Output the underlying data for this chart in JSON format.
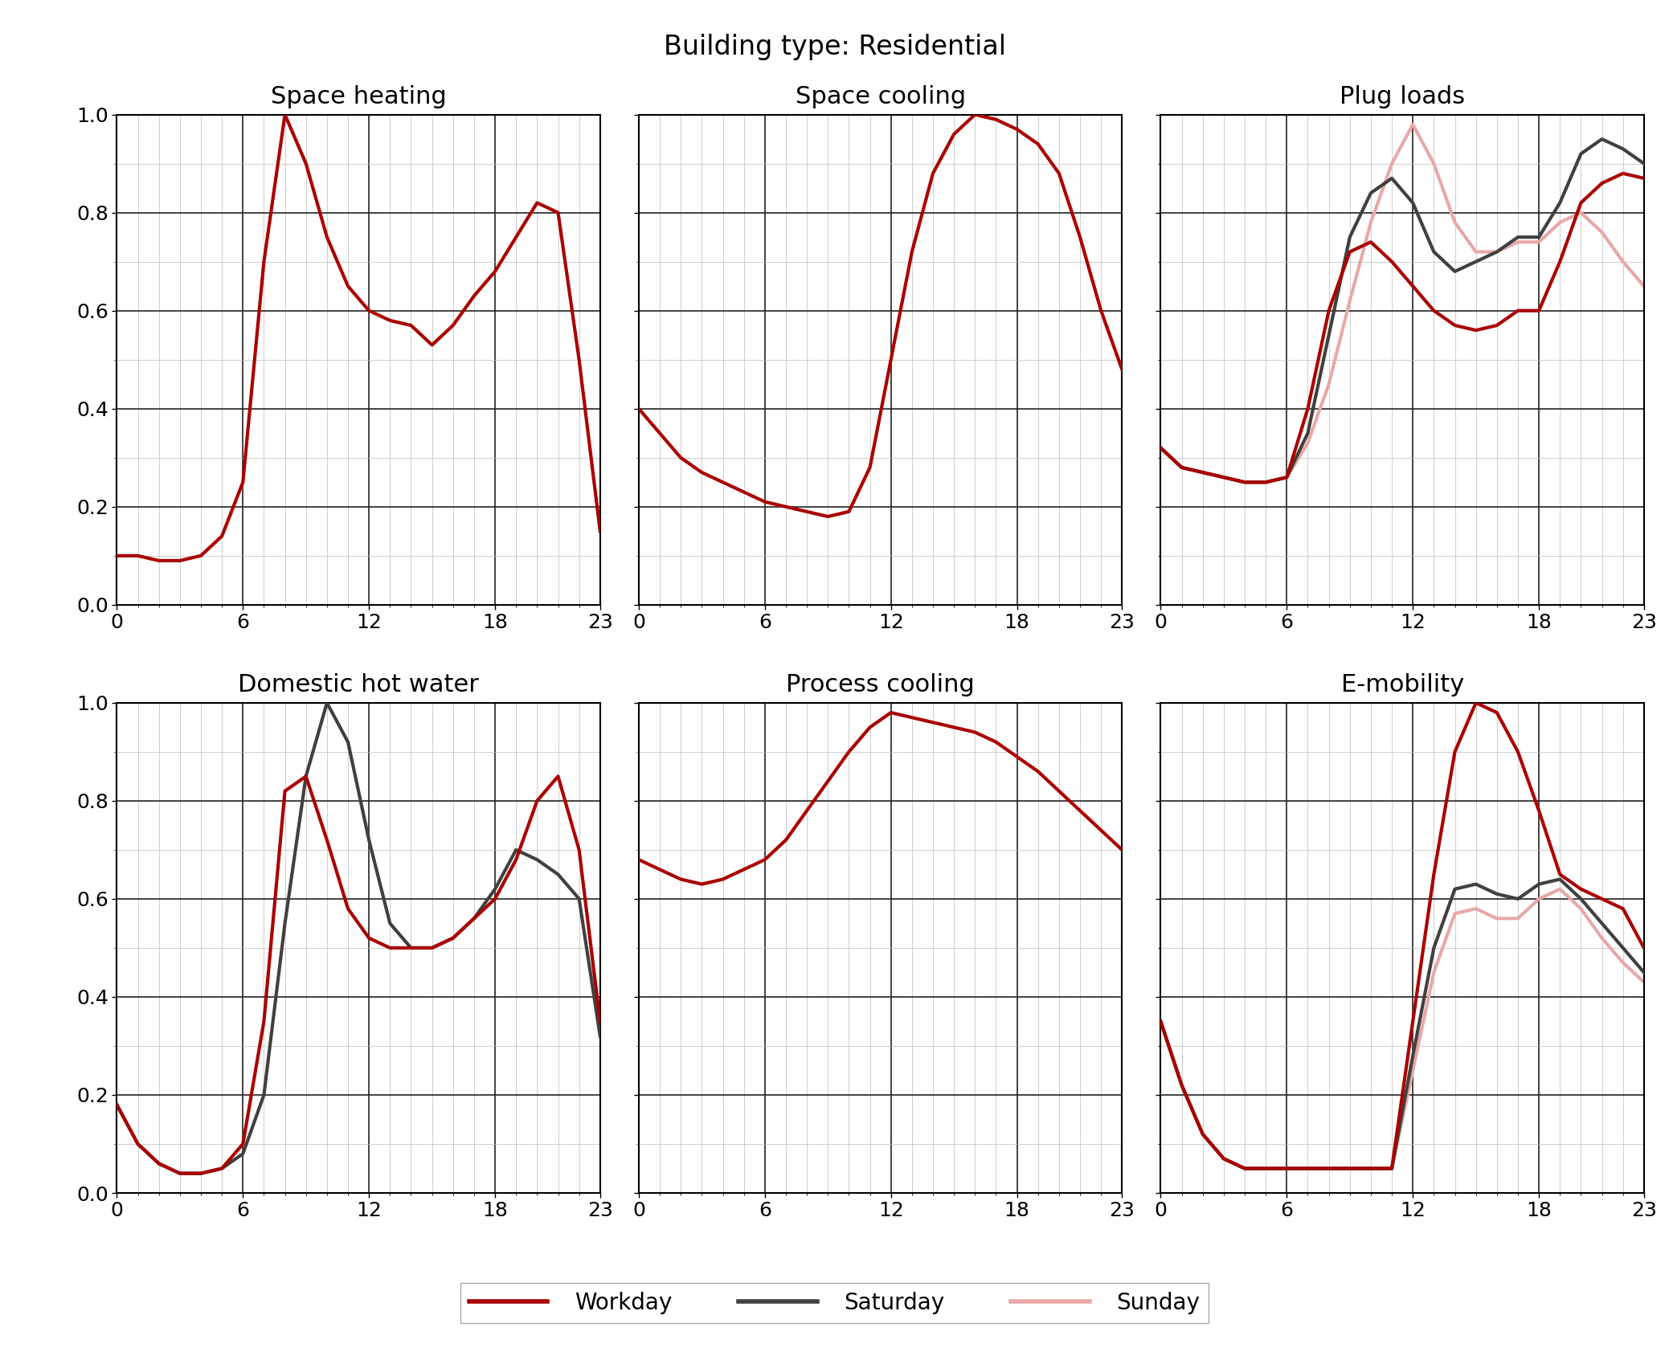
{
  "title": "Building type: Residential",
  "subplot_titles": [
    "Space heating",
    "Space cooling",
    "Plug loads",
    "Domestic hot water",
    "Process cooling",
    "E-mobility"
  ],
  "colors": {
    "workday": "#aa0000",
    "saturday": "#404040",
    "sunday": "#e8a8a8"
  },
  "x_ticks": [
    0,
    6,
    12,
    18,
    23
  ],
  "xlim": [
    0,
    23
  ],
  "ylim": [
    0.0,
    1.0
  ],
  "y_ticks": [
    0.0,
    0.2,
    0.4,
    0.6,
    0.8,
    1.0
  ],
  "hours": [
    0,
    1,
    2,
    3,
    4,
    5,
    6,
    7,
    8,
    9,
    10,
    11,
    12,
    13,
    14,
    15,
    16,
    17,
    18,
    19,
    20,
    21,
    22,
    23
  ],
  "space_heating": {
    "workday": [
      0.1,
      0.1,
      0.09,
      0.09,
      0.1,
      0.14,
      0.25,
      0.7,
      1.0,
      0.9,
      0.75,
      0.65,
      0.6,
      0.58,
      0.57,
      0.53,
      0.57,
      0.63,
      0.68,
      0.75,
      0.82,
      0.8,
      0.5,
      0.15
    ],
    "saturday": null,
    "sunday": null
  },
  "space_cooling": {
    "workday": [
      0.4,
      0.35,
      0.3,
      0.27,
      0.25,
      0.23,
      0.21,
      0.2,
      0.19,
      0.18,
      0.19,
      0.28,
      0.5,
      0.72,
      0.88,
      0.96,
      1.0,
      0.99,
      0.97,
      0.94,
      0.88,
      0.75,
      0.6,
      0.48
    ],
    "saturday": null,
    "sunday": null
  },
  "plug_loads": {
    "workday": [
      0.32,
      0.28,
      0.27,
      0.26,
      0.25,
      0.25,
      0.26,
      0.4,
      0.6,
      0.72,
      0.74,
      0.7,
      0.65,
      0.6,
      0.57,
      0.56,
      0.57,
      0.6,
      0.6,
      0.7,
      0.82,
      0.86,
      0.88,
      0.87
    ],
    "saturday": [
      0.32,
      0.28,
      0.27,
      0.26,
      0.25,
      0.25,
      0.26,
      0.35,
      0.55,
      0.75,
      0.84,
      0.87,
      0.82,
      0.72,
      0.68,
      0.7,
      0.72,
      0.75,
      0.75,
      0.82,
      0.92,
      0.95,
      0.93,
      0.9
    ],
    "sunday": [
      0.32,
      0.28,
      0.27,
      0.26,
      0.25,
      0.25,
      0.26,
      0.33,
      0.45,
      0.62,
      0.78,
      0.9,
      0.98,
      0.9,
      0.78,
      0.72,
      0.72,
      0.74,
      0.74,
      0.78,
      0.8,
      0.76,
      0.7,
      0.65
    ]
  },
  "domestic_hot_water": {
    "workday": [
      0.18,
      0.1,
      0.06,
      0.04,
      0.04,
      0.05,
      0.1,
      0.35,
      0.82,
      0.85,
      0.72,
      0.58,
      0.52,
      0.5,
      0.5,
      0.5,
      0.52,
      0.56,
      0.6,
      0.68,
      0.8,
      0.85,
      0.7,
      0.35
    ],
    "saturday": [
      0.18,
      0.1,
      0.06,
      0.04,
      0.04,
      0.05,
      0.08,
      0.2,
      0.55,
      0.85,
      1.0,
      0.92,
      0.72,
      0.55,
      0.5,
      0.5,
      0.52,
      0.56,
      0.62,
      0.7,
      0.68,
      0.65,
      0.6,
      0.32
    ],
    "sunday": null
  },
  "process_cooling": {
    "workday": [
      0.68,
      0.66,
      0.64,
      0.63,
      0.64,
      0.66,
      0.68,
      0.72,
      0.78,
      0.84,
      0.9,
      0.95,
      0.98,
      0.97,
      0.96,
      0.95,
      0.94,
      0.92,
      0.89,
      0.86,
      0.82,
      0.78,
      0.74,
      0.7
    ],
    "saturday": null,
    "sunday": null
  },
  "e_mobility": {
    "workday": [
      0.35,
      0.22,
      0.12,
      0.07,
      0.05,
      0.05,
      0.05,
      0.05,
      0.05,
      0.05,
      0.05,
      0.05,
      0.35,
      0.65,
      0.9,
      1.0,
      0.98,
      0.9,
      0.78,
      0.65,
      0.62,
      0.6,
      0.58,
      0.5
    ],
    "saturday": [
      0.35,
      0.22,
      0.12,
      0.07,
      0.05,
      0.05,
      0.05,
      0.05,
      0.05,
      0.05,
      0.05,
      0.05,
      0.28,
      0.5,
      0.62,
      0.63,
      0.61,
      0.6,
      0.63,
      0.64,
      0.6,
      0.55,
      0.5,
      0.45
    ],
    "sunday": [
      0.35,
      0.22,
      0.12,
      0.07,
      0.05,
      0.05,
      0.05,
      0.05,
      0.05,
      0.05,
      0.05,
      0.05,
      0.25,
      0.45,
      0.57,
      0.58,
      0.56,
      0.56,
      0.6,
      0.62,
      0.58,
      0.52,
      0.47,
      0.43
    ]
  },
  "line_width": 3.0,
  "title_fontsize": 24,
  "subtitle_fontsize": 22,
  "tick_fontsize": 18,
  "legend_fontsize": 20
}
